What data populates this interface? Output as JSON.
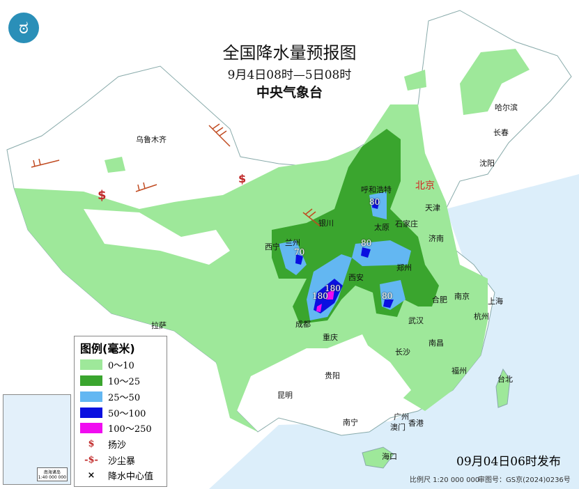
{
  "header": {
    "title": "全国降水量预报图",
    "period": "9月4日08时—5日08时",
    "agency": "中央气象台"
  },
  "logo": {
    "icon": "cma-logo"
  },
  "cities": {
    "urumqi": "乌鲁木齐",
    "harbin": "哈尔滨",
    "changchun": "长春",
    "shenyang": "沈阳",
    "hohhot": "呼和浩特",
    "beijing": "北京",
    "tianjin": "天津",
    "shijiazhuang": "石家庄",
    "taiyuan": "太原",
    "yinchuan": "银川",
    "xining": "西宁",
    "lanzhou": "兰州",
    "jinan": "济南",
    "zhengzhou": "郑州",
    "xian": "西安",
    "hefei": "合肥",
    "nanjing": "南京",
    "shanghai": "上海",
    "hangzhou": "杭州",
    "wuhan": "武汉",
    "chengdu": "成都",
    "chongqing": "重庆",
    "lhasa": "拉萨",
    "changsha": "长沙",
    "nanchang": "南昌",
    "guiyang": "贵阳",
    "fuzhou": "福州",
    "taipei": "台北",
    "kunming": "昆明",
    "nanning": "南宁",
    "guangzhou": "广州",
    "macau": "澳门",
    "hongkong": "香港",
    "haikou": "海口"
  },
  "precip_centers": [
    "80",
    "80",
    "70",
    "180",
    "180",
    "80"
  ],
  "legend": {
    "title": "图例(毫米)",
    "bins": [
      {
        "label": "0～10",
        "color": "#9ee89a"
      },
      {
        "label": "10～25",
        "color": "#3aa52e"
      },
      {
        "label": "25～50",
        "color": "#63b7f2"
      },
      {
        "label": "50～100",
        "color": "#0a10e0"
      },
      {
        "label": "100～250",
        "color": "#f00cf0"
      }
    ],
    "symbols": [
      {
        "label": "扬沙",
        "icon": "blowing-sand-icon"
      },
      {
        "label": "沙尘暴",
        "icon": "sandstorm-icon"
      },
      {
        "label": "降水中心值",
        "icon": "cross-icon"
      }
    ]
  },
  "inset": {
    "label": "南海诸岛",
    "scale": "1:40 000 000"
  },
  "footer": {
    "issued": "09月04日06时发布",
    "scale": "比例尺 1:20 000 000",
    "review_no": "审图号：GS京(2024)0236号"
  }
}
